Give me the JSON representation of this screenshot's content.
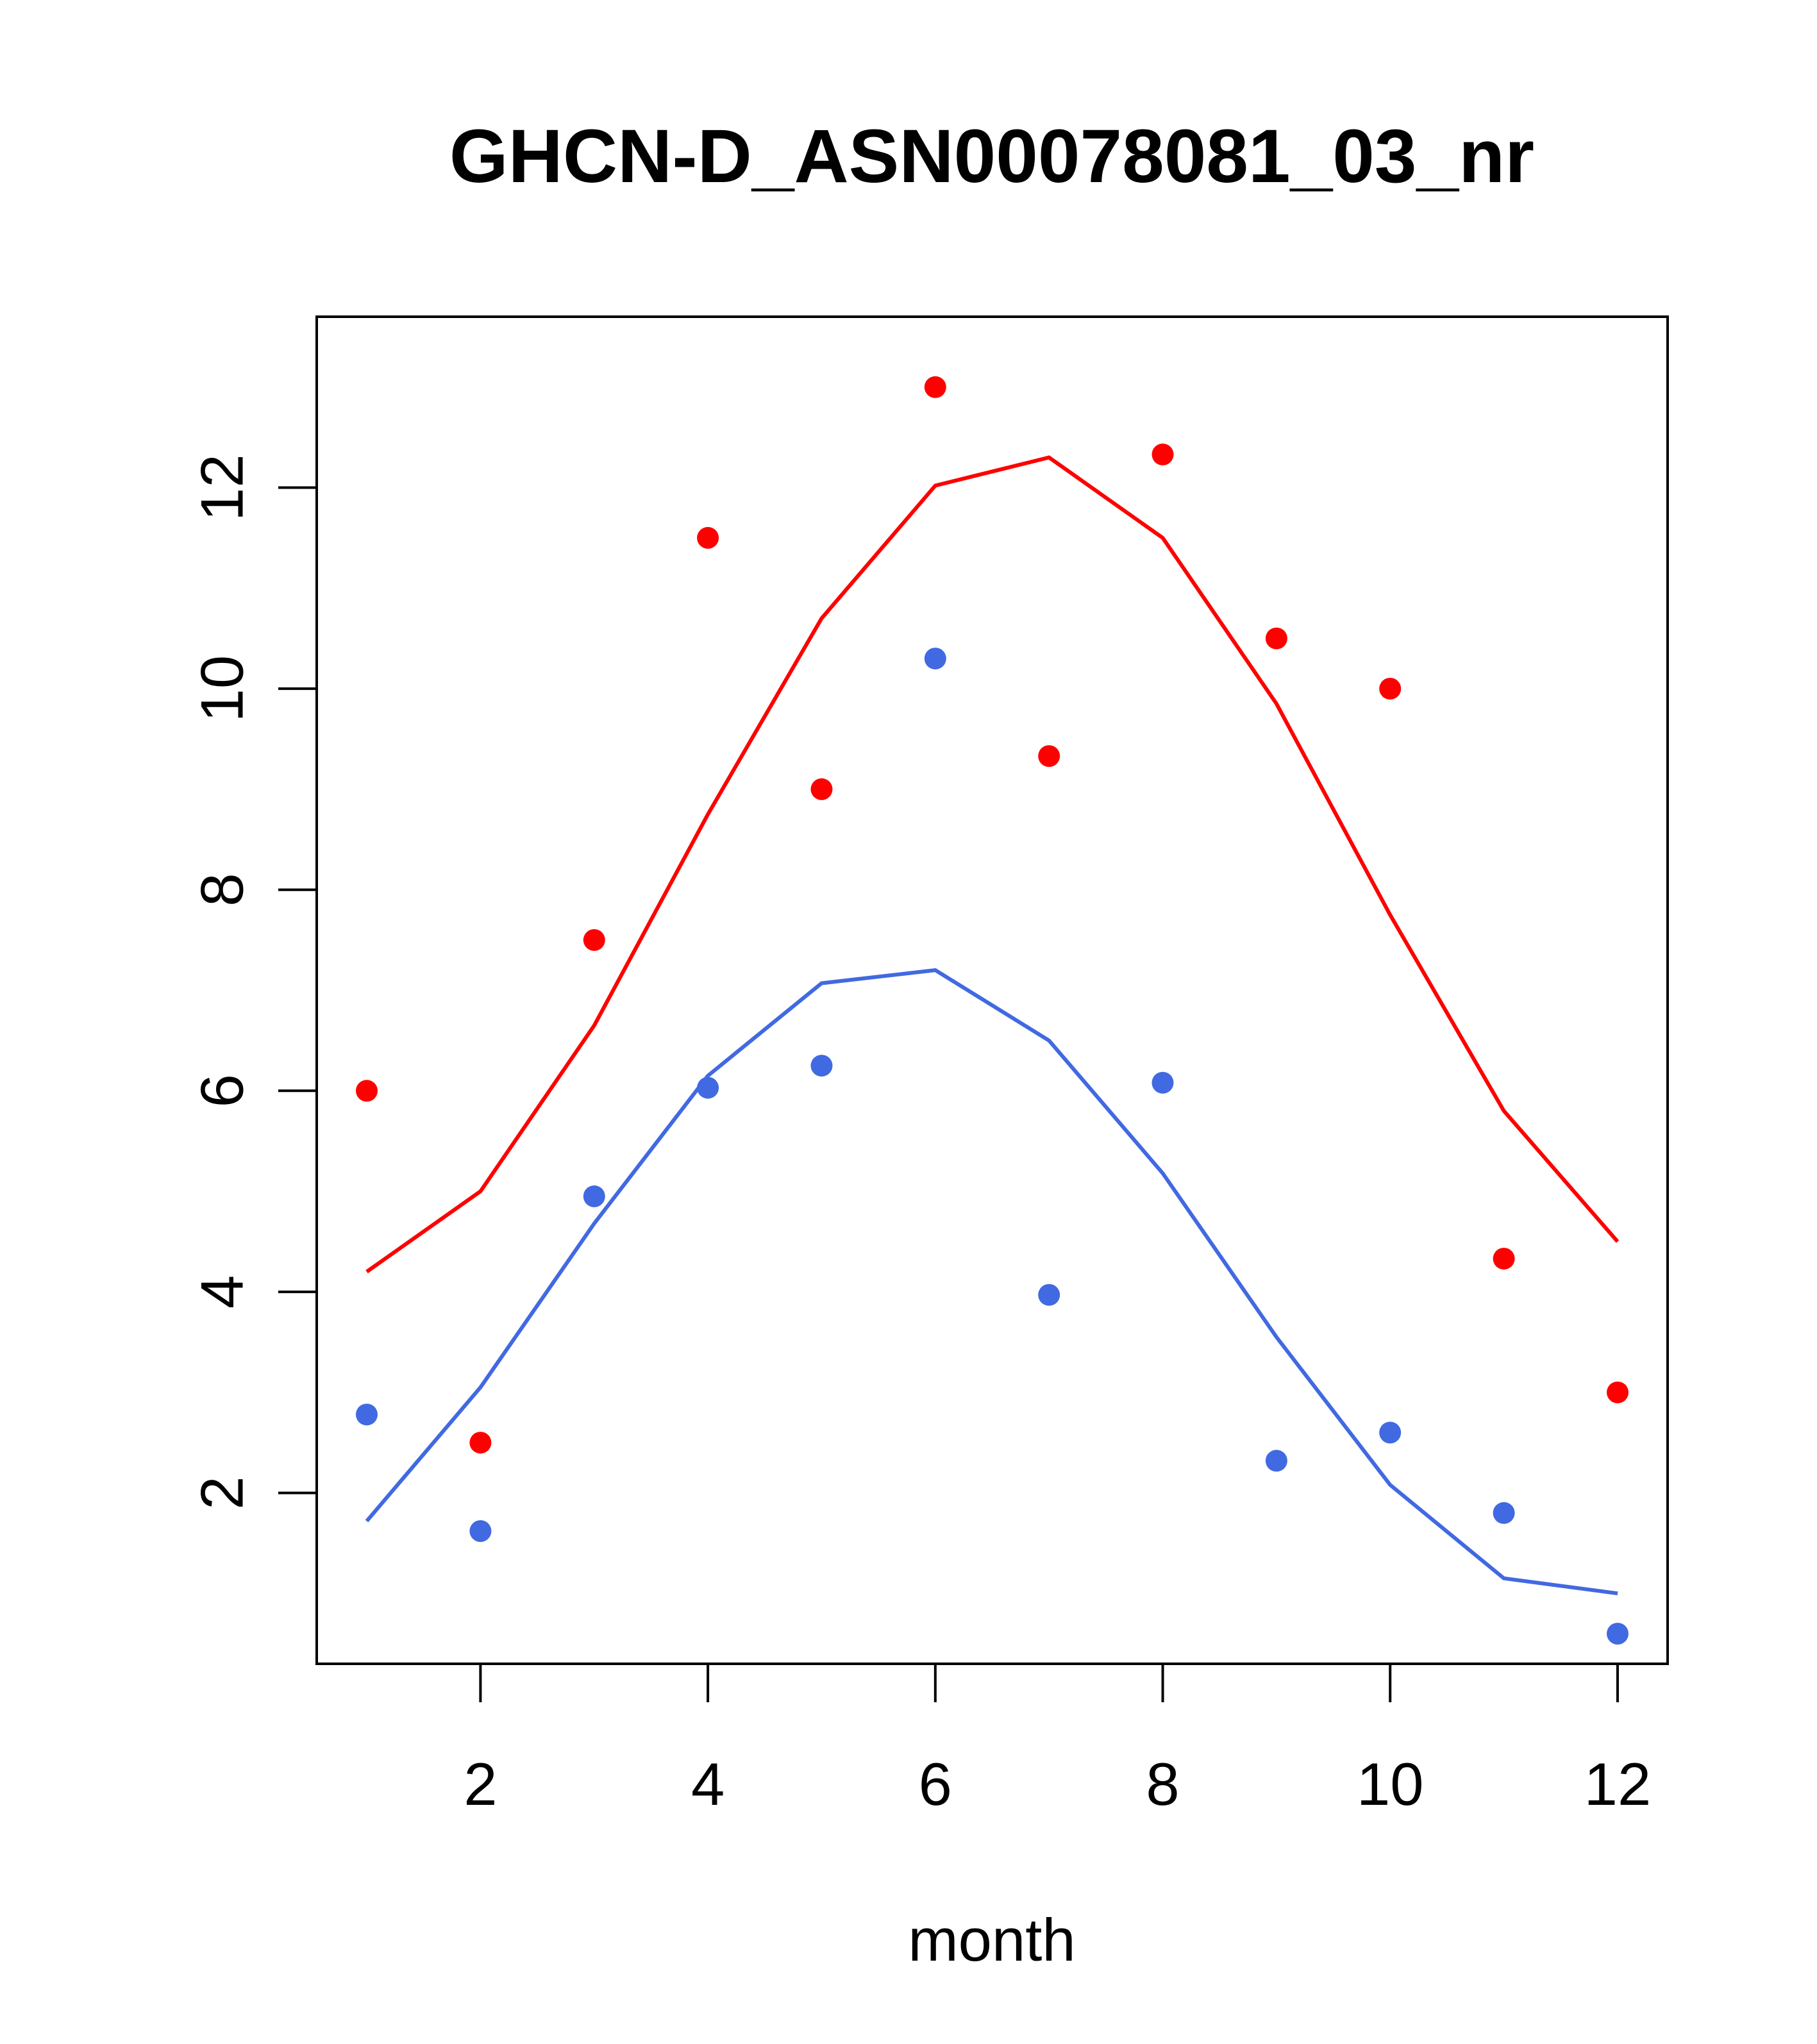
{
  "chart_data": {
    "type": "line",
    "title": "GHCN-D_ASN00078081_03_nr",
    "xlabel": "month",
    "ylabel": "",
    "xlim": [
      0.56,
      12.44
    ],
    "ylim": [
      0.3,
      13.7
    ],
    "x_ticks": [
      2,
      4,
      6,
      8,
      10,
      12
    ],
    "y_ticks": [
      2,
      4,
      6,
      8,
      10,
      12
    ],
    "grid": false,
    "series": [
      {
        "color": "#ff0000",
        "points_x": [
          1,
          2,
          3,
          4,
          5,
          6,
          7,
          8,
          9,
          10,
          11,
          12
        ],
        "points_y": [
          6.0,
          2.5,
          7.5,
          11.5,
          9.0,
          13.0,
          9.33,
          12.33,
          10.5,
          10.0,
          4.33,
          3.0
        ],
        "line_x": [
          1,
          2,
          3,
          4,
          5,
          6,
          7,
          8,
          9,
          10,
          11,
          12
        ],
        "line_y": [
          4.2,
          5.0,
          6.65,
          8.75,
          10.7,
          12.02,
          12.3,
          11.5,
          9.85,
          7.75,
          5.8,
          4.5
        ]
      },
      {
        "color": "#4169e1",
        "points_x": [
          1,
          2,
          3,
          4,
          5,
          6,
          7,
          8,
          9,
          10,
          11,
          12
        ],
        "points_y": [
          2.78,
          1.62,
          4.95,
          6.03,
          6.25,
          10.3,
          3.97,
          6.08,
          2.32,
          2.6,
          1.8,
          0.6
        ],
        "line_x": [
          1,
          2,
          3,
          4,
          5,
          6,
          7,
          8,
          9,
          10,
          11,
          12
        ],
        "line_y": [
          1.72,
          3.05,
          4.68,
          6.15,
          7.07,
          7.2,
          6.5,
          5.18,
          3.55,
          2.08,
          1.15,
          1.0
        ]
      }
    ]
  }
}
